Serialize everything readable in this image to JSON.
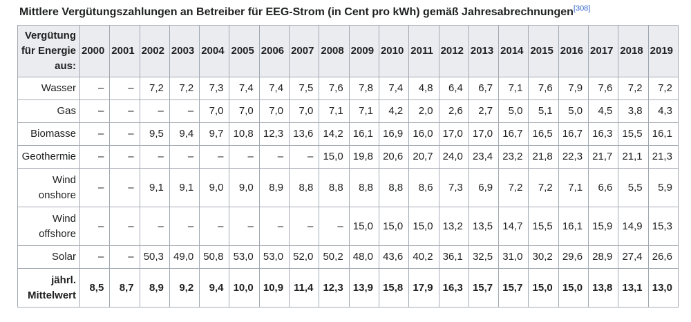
{
  "title": {
    "text": "Mittlere Vergütungszahlungen an Betreiber für EEG-Strom (in Cent pro kWh) gemäß Jahresabrechnungen",
    "ref": "[308]"
  },
  "colors": {
    "header_bg": "#eaecf0",
    "border": "#a2a9b1",
    "link": "#3366cc",
    "text": "#202122",
    "background": "#ffffff"
  },
  "table": {
    "corner_label": "Vergütung\nfür Energie\naus:",
    "years": [
      "2000",
      "2001",
      "2002",
      "2003",
      "2004",
      "2005",
      "2006",
      "2007",
      "2008",
      "2009",
      "2010",
      "2011",
      "2012",
      "2013",
      "2014",
      "2015",
      "2016",
      "2017",
      "2018",
      "2019"
    ],
    "rows": [
      {
        "label": "Wasser",
        "bold": false,
        "values": [
          "–",
          "–",
          "7,2",
          "7,2",
          "7,3",
          "7,4",
          "7,4",
          "7,5",
          "7,6",
          "7,8",
          "7,4",
          "4,8",
          "6,4",
          "6,7",
          "7,1",
          "7,6",
          "7,9",
          "7,6",
          "7,2",
          "7,2"
        ]
      },
      {
        "label": "Gas",
        "bold": false,
        "values": [
          "–",
          "–",
          "–",
          "–",
          "7,0",
          "7,0",
          "7,0",
          "7,0",
          "7,1",
          "7,1",
          "4,2",
          "2,0",
          "2,6",
          "2,7",
          "5,0",
          "5,1",
          "5,0",
          "4,5",
          "3,8",
          "4,3"
        ]
      },
      {
        "label": "Biomasse",
        "bold": false,
        "values": [
          "–",
          "–",
          "9,5",
          "9,4",
          "9,7",
          "10,8",
          "12,3",
          "13,6",
          "14,2",
          "16,1",
          "16,9",
          "16,0",
          "17,0",
          "17,0",
          "16,7",
          "16,5",
          "16,7",
          "16,3",
          "15,5",
          "16,1"
        ]
      },
      {
        "label": "Geothermie",
        "bold": false,
        "values": [
          "–",
          "–",
          "–",
          "–",
          "–",
          "–",
          "–",
          "–",
          "15,0",
          "19,8",
          "20,6",
          "20,7",
          "24,0",
          "23,4",
          "23,2",
          "21,8",
          "22,3",
          "21,7",
          "21,1",
          "21,3"
        ]
      },
      {
        "label": "Wind\nonshore",
        "bold": false,
        "values": [
          "–",
          "–",
          "9,1",
          "9,1",
          "9,0",
          "9,0",
          "8,9",
          "8,8",
          "8,8",
          "8,8",
          "8,8",
          "8,6",
          "7,3",
          "6,9",
          "7,2",
          "7,2",
          "7,1",
          "6,6",
          "5,5",
          "5,9"
        ]
      },
      {
        "label": "Wind\noffshore",
        "bold": false,
        "values": [
          "–",
          "–",
          "–",
          "–",
          "–",
          "–",
          "–",
          "–",
          "–",
          "15,0",
          "15,0",
          "15,0",
          "13,2",
          "13,5",
          "14,7",
          "15,5",
          "16,1",
          "15,9",
          "14,9",
          "15,3"
        ]
      },
      {
        "label": "Solar",
        "bold": false,
        "values": [
          "–",
          "–",
          "50,3",
          "49,0",
          "50,8",
          "53,0",
          "53,0",
          "52,0",
          "50,2",
          "48,0",
          "43,6",
          "40,2",
          "36,1",
          "32,5",
          "31,0",
          "30,2",
          "29,6",
          "28,9",
          "27,4",
          "26,6"
        ]
      },
      {
        "label": "jährl.\nMittelwert",
        "bold": true,
        "values": [
          "8,5",
          "8,7",
          "8,9",
          "9,2",
          "9,4",
          "10,0",
          "10,9",
          "11,4",
          "12,3",
          "13,9",
          "15,8",
          "17,9",
          "16,3",
          "15,7",
          "15,7",
          "15,0",
          "15,0",
          "13,8",
          "13,1",
          "13,0"
        ]
      }
    ]
  }
}
